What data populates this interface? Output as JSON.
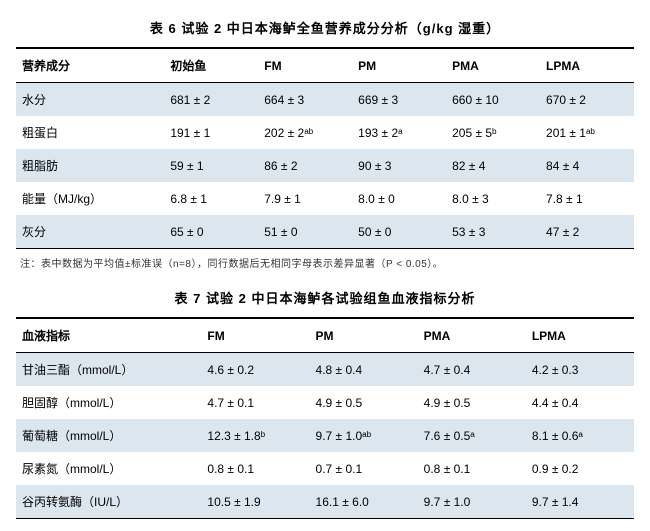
{
  "table6": {
    "caption": "表 6  试验 2 中日本海鲈全鱼营养成分分析（g/kg 湿重）",
    "headers": [
      "营养成分",
      "初始鱼",
      "FM",
      "PM",
      "PMA",
      "LPMA"
    ],
    "rows": [
      [
        "水分",
        "681 ± 2",
        "664 ± 3",
        "669 ± 3",
        "660 ± 10",
        "670 ± 2"
      ],
      [
        "粗蛋白",
        "191 ± 1",
        "202 ± 2ᵃᵇ",
        "193 ± 2ᵃ",
        "205 ± 5ᵇ",
        "201 ± 1ᵃᵇ"
      ],
      [
        "粗脂肪",
        "59 ± 1",
        "86 ± 2",
        "90 ± 3",
        "82 ± 4",
        "84 ± 4"
      ],
      [
        "能量（MJ/kg）",
        "6.8 ± 1",
        "7.9 ± 1",
        "8.0 ± 0",
        "8.0 ± 3",
        "7.8 ± 1"
      ],
      [
        "灰分",
        "65 ± 0",
        "51 ± 0",
        "50 ± 0",
        "53 ± 3",
        "47 ± 2"
      ]
    ],
    "footnote": "注：表中数据为平均值±标准误（n=8），同行数据后无相同字母表示差异显著（P < 0.05）。",
    "styling": {
      "row_alt_bg": "#dbe6ef",
      "row_plain_bg": "#ffffff",
      "border_color": "#000000",
      "text_color": "#000000",
      "font_size_body": 12,
      "font_size_caption": 13,
      "font_size_footnote": 10,
      "col_widths_pct": [
        24,
        15.2,
        15.2,
        15.2,
        15.2,
        15.2
      ]
    }
  },
  "table7": {
    "caption": "表 7  试验 2 中日本海鲈各试验组鱼血液指标分析",
    "headers": [
      "血液指标",
      "FM",
      "PM",
      "PMA",
      "LPMA"
    ],
    "rows": [
      [
        "甘油三酯（mmol/L）",
        "4.6 ± 0.2",
        "4.8 ± 0.4",
        "4.7 ± 0.4",
        "4.2 ± 0.3"
      ],
      [
        "胆固醇（mmol/L）",
        "4.7 ± 0.1",
        "4.9 ± 0.5",
        "4.9 ± 0.5",
        "4.4 ± 0.4"
      ],
      [
        "葡萄糖（mmol/L）",
        "12.3 ± 1.8ᵇ",
        "9.7 ± 1.0ᵃᵇ",
        "7.6 ± 0.5ᵃ",
        "8.1 ± 0.6ᵃ"
      ],
      [
        "尿素氮（mmol/L）",
        "0.8 ± 0.1",
        "0.7 ± 0.1",
        "0.8 ± 0.1",
        "0.9 ± 0.2"
      ],
      [
        "谷丙转氨酶（IU/L）",
        "10.5 ± 1.9",
        "16.1 ± 6.0",
        "9.7 ± 1.0",
        "9.7 ± 1.4"
      ]
    ],
    "styling": {
      "row_alt_bg": "#dbe6ef",
      "row_plain_bg": "#ffffff",
      "border_color": "#000000",
      "text_color": "#000000",
      "font_size_body": 12,
      "font_size_caption": 13,
      "col_widths_pct": [
        30,
        17.5,
        17.5,
        17.5,
        17.5
      ]
    }
  }
}
